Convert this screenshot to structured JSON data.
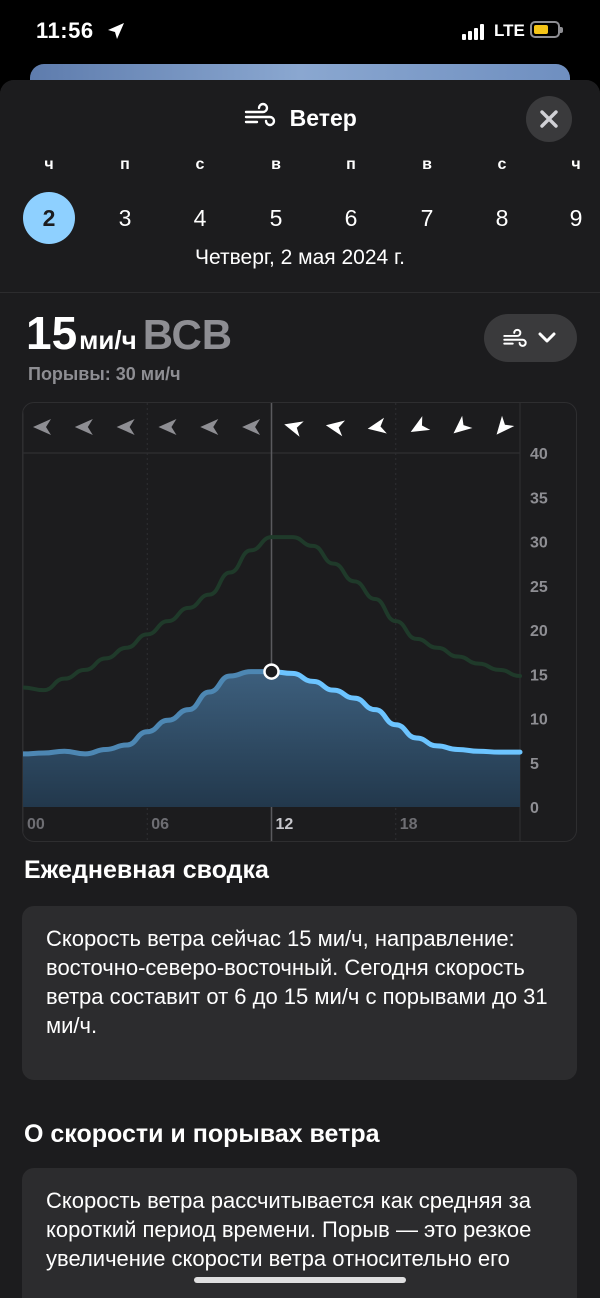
{
  "status": {
    "time": "11:56",
    "network": "LTE"
  },
  "header": {
    "title": "Ветер",
    "close_icon": "close-icon"
  },
  "days": [
    {
      "letter": "ч",
      "num": "2",
      "selected": true
    },
    {
      "letter": "п",
      "num": "3",
      "selected": false
    },
    {
      "letter": "с",
      "num": "4",
      "selected": false
    },
    {
      "letter": "в",
      "num": "5",
      "selected": false
    },
    {
      "letter": "п",
      "num": "6",
      "selected": false
    },
    {
      "letter": "в",
      "num": "7",
      "selected": false
    },
    {
      "letter": "с",
      "num": "8",
      "selected": false
    },
    {
      "letter": "ч",
      "num": "9",
      "selected": false
    }
  ],
  "date_label": "Четверг, 2 мая 2024 г.",
  "current": {
    "speed": "15",
    "unit": "ми/ч",
    "direction": "ВСВ",
    "gusts": "Порывы: 30 ми/ч"
  },
  "chart_data": {
    "type": "area",
    "x_ticks": [
      "00",
      "06",
      "12",
      "18"
    ],
    "y_ticks": [
      "0",
      "5",
      "10",
      "15",
      "20",
      "25",
      "30",
      "35",
      "40"
    ],
    "ylim": [
      0,
      40
    ],
    "xlim": [
      0,
      24
    ],
    "current_hour": 12,
    "series": [
      {
        "role": "wind",
        "color": "#6cc4ff",
        "points": [
          [
            0,
            6
          ],
          [
            1,
            6.1
          ],
          [
            2,
            6.3
          ],
          [
            3,
            6
          ],
          [
            4,
            6.5
          ],
          [
            5,
            7
          ],
          [
            6,
            8.5
          ],
          [
            7,
            9.8
          ],
          [
            8,
            11
          ],
          [
            9,
            13
          ],
          [
            10,
            14.8
          ],
          [
            11,
            15.3
          ],
          [
            12,
            15.3
          ],
          [
            13,
            15.1
          ],
          [
            14,
            14.2
          ],
          [
            15,
            13.2
          ],
          [
            16,
            12.3
          ],
          [
            17,
            11
          ],
          [
            18,
            9.3
          ],
          [
            19,
            7.8
          ],
          [
            20,
            6.9
          ],
          [
            21,
            6.5
          ],
          [
            22,
            6.3
          ],
          [
            23,
            6.2
          ],
          [
            24,
            6.2
          ]
        ]
      },
      {
        "role": "gusts",
        "color": "#1f3a2a",
        "points": [
          [
            0,
            13.5
          ],
          [
            1,
            13.2
          ],
          [
            2,
            14.5
          ],
          [
            3,
            15.5
          ],
          [
            4,
            16.8
          ],
          [
            5,
            18
          ],
          [
            6,
            19.5
          ],
          [
            7,
            21
          ],
          [
            8,
            22.5
          ],
          [
            9,
            24
          ],
          [
            10,
            26.5
          ],
          [
            11,
            29
          ],
          [
            12,
            30.5
          ],
          [
            13,
            30.5
          ],
          [
            14,
            29.5
          ],
          [
            15,
            27.5
          ],
          [
            16,
            25.5
          ],
          [
            17,
            23.5
          ],
          [
            18,
            21
          ],
          [
            19,
            19
          ],
          [
            20,
            18
          ],
          [
            21,
            17
          ],
          [
            22,
            16.2
          ],
          [
            23,
            15.5
          ],
          [
            24,
            14.8
          ]
        ]
      }
    ],
    "direction_arrows": [
      {
        "angle": 180,
        "highlight": false
      },
      {
        "angle": 180,
        "highlight": false
      },
      {
        "angle": 180,
        "highlight": false
      },
      {
        "angle": 180,
        "highlight": false
      },
      {
        "angle": 180,
        "highlight": false
      },
      {
        "angle": 180,
        "highlight": false
      },
      {
        "angle": 195,
        "highlight": true
      },
      {
        "angle": 190,
        "highlight": true
      },
      {
        "angle": 170,
        "highlight": true
      },
      {
        "angle": 150,
        "highlight": true
      },
      {
        "angle": 140,
        "highlight": true
      },
      {
        "angle": 130,
        "highlight": true
      }
    ]
  },
  "summary": {
    "title": "Ежедневная сводка",
    "text": "Скорость ветра сейчас 15 ми/ч, направление: восточно-северо-восточный. Сегодня скорость ветра составит от 6 до 15 ми/ч с порывами до 31 ми/ч."
  },
  "about": {
    "title": "О скорости и порывах ветра",
    "text": "Скорость ветра рассчитывается как средняя за короткий период времени. Порыв — это резкое увеличение скорости ветра относительно его"
  }
}
